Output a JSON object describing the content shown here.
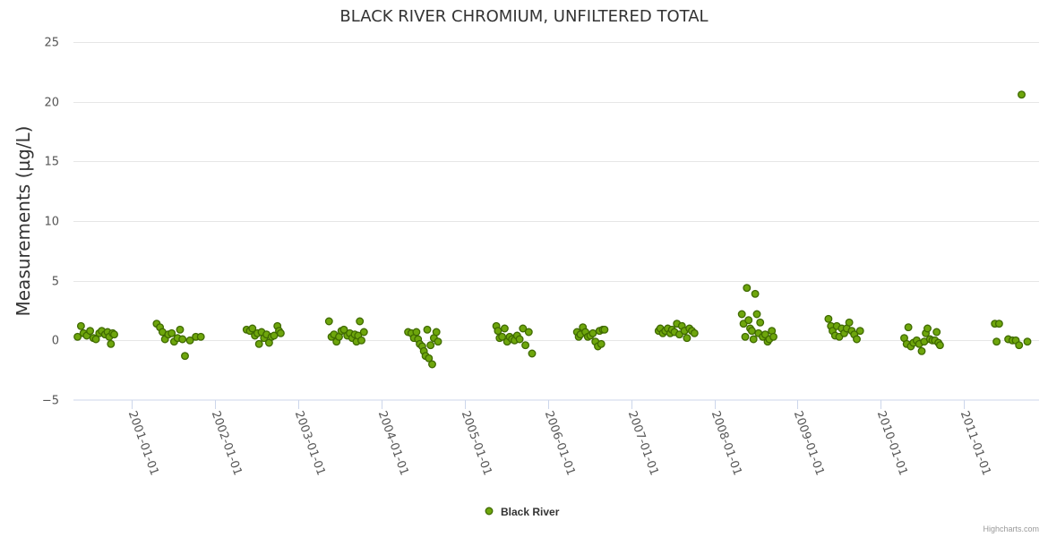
{
  "chart_data": {
    "type": "scatter",
    "title": "BLACK RIVER CHROMIUM, UNFILTERED TOTAL",
    "ylabel": "Measurements (µg/L)",
    "xlabel": "",
    "ylim": [
      -5,
      25
    ],
    "yticks": [
      "25",
      "20",
      "15",
      "10",
      "5",
      "0",
      "−5"
    ],
    "ytick_values": [
      25,
      20,
      15,
      10,
      5,
      0,
      -5
    ],
    "xlim": [
      2000.3,
      2011.9
    ],
    "xticks": [
      "2001-01-01",
      "2002-01-01",
      "2003-01-01",
      "2004-01-01",
      "2005-01-01",
      "2006-01-01",
      "2007-01-01",
      "2008-01-01",
      "2009-01-01",
      "2010-01-01",
      "2011-01-01"
    ],
    "xtick_values": [
      2001,
      2002,
      2003,
      2004,
      2005,
      2006,
      2007,
      2008,
      2009,
      2010,
      2011
    ],
    "color": "#6ea60c",
    "series": [
      {
        "name": "Black River",
        "points": [
          [
            2000.35,
            0.3
          ],
          [
            2000.39,
            1.2
          ],
          [
            2000.42,
            0.6
          ],
          [
            2000.46,
            0.4
          ],
          [
            2000.5,
            0.8
          ],
          [
            2000.54,
            0.2
          ],
          [
            2000.57,
            0.1
          ],
          [
            2000.61,
            0.6
          ],
          [
            2000.64,
            0.8
          ],
          [
            2000.68,
            0.5
          ],
          [
            2000.71,
            0.7
          ],
          [
            2000.73,
            0.3
          ],
          [
            2000.75,
            -0.3
          ],
          [
            2000.77,
            0.6
          ],
          [
            2000.79,
            0.5
          ],
          [
            2001.3,
            1.4
          ],
          [
            2001.34,
            1.1
          ],
          [
            2001.37,
            0.7
          ],
          [
            2001.4,
            0.1
          ],
          [
            2001.44,
            0.5
          ],
          [
            2001.48,
            0.6
          ],
          [
            2001.51,
            -0.1
          ],
          [
            2001.55,
            0.2
          ],
          [
            2001.58,
            0.9
          ],
          [
            2001.61,
            0.1
          ],
          [
            2001.64,
            -1.3
          ],
          [
            2001.7,
            0.0
          ],
          [
            2001.77,
            0.3
          ],
          [
            2001.83,
            0.3
          ],
          [
            2002.38,
            0.9
          ],
          [
            2002.42,
            0.8
          ],
          [
            2002.45,
            1.0
          ],
          [
            2002.48,
            0.4
          ],
          [
            2002.51,
            0.6
          ],
          [
            2002.53,
            -0.3
          ],
          [
            2002.56,
            0.7
          ],
          [
            2002.59,
            0.2
          ],
          [
            2002.62,
            0.5
          ],
          [
            2002.65,
            -0.2
          ],
          [
            2002.68,
            0.3
          ],
          [
            2002.71,
            0.4
          ],
          [
            2002.75,
            1.2
          ],
          [
            2002.77,
            0.8
          ],
          [
            2002.79,
            0.6
          ],
          [
            2003.37,
            1.6
          ],
          [
            2003.4,
            0.3
          ],
          [
            2003.43,
            0.5
          ],
          [
            2003.46,
            -0.1
          ],
          [
            2003.49,
            0.3
          ],
          [
            2003.52,
            0.8
          ],
          [
            2003.55,
            0.9
          ],
          [
            2003.59,
            0.4
          ],
          [
            2003.62,
            0.6
          ],
          [
            2003.65,
            0.2
          ],
          [
            2003.68,
            0.5
          ],
          [
            2003.7,
            -0.1
          ],
          [
            2003.72,
            0.4
          ],
          [
            2003.74,
            1.6
          ],
          [
            2003.76,
            0.0
          ],
          [
            2003.79,
            0.7
          ],
          [
            2004.32,
            0.7
          ],
          [
            2004.36,
            0.6
          ],
          [
            2004.39,
            0.2
          ],
          [
            2004.42,
            0.7
          ],
          [
            2004.44,
            0.1
          ],
          [
            2004.46,
            -0.3
          ],
          [
            2004.49,
            -0.5
          ],
          [
            2004.51,
            -0.9
          ],
          [
            2004.53,
            -1.3
          ],
          [
            2004.55,
            0.9
          ],
          [
            2004.57,
            -1.5
          ],
          [
            2004.59,
            -0.4
          ],
          [
            2004.61,
            -2.0
          ],
          [
            2004.63,
            0.2
          ],
          [
            2004.66,
            0.7
          ],
          [
            2004.68,
            -0.1
          ],
          [
            2005.38,
            1.2
          ],
          [
            2005.4,
            0.8
          ],
          [
            2005.42,
            0.2
          ],
          [
            2005.45,
            0.3
          ],
          [
            2005.48,
            1.0
          ],
          [
            2005.51,
            -0.1
          ],
          [
            2005.54,
            0.3
          ],
          [
            2005.57,
            0.1
          ],
          [
            2005.6,
            0.0
          ],
          [
            2005.63,
            0.4
          ],
          [
            2005.66,
            0.1
          ],
          [
            2005.7,
            1.0
          ],
          [
            2005.73,
            -0.4
          ],
          [
            2005.77,
            0.7
          ],
          [
            2005.81,
            -1.1
          ],
          [
            2006.35,
            0.7
          ],
          [
            2006.37,
            0.3
          ],
          [
            2006.39,
            0.5
          ],
          [
            2006.42,
            1.1
          ],
          [
            2006.45,
            0.7
          ],
          [
            2006.48,
            0.3
          ],
          [
            2006.51,
            0.4
          ],
          [
            2006.54,
            0.6
          ],
          [
            2006.57,
            -0.1
          ],
          [
            2006.6,
            -0.5
          ],
          [
            2006.62,
            0.8
          ],
          [
            2006.64,
            -0.3
          ],
          [
            2006.66,
            0.9
          ],
          [
            2006.68,
            0.9
          ],
          [
            2007.33,
            0.8
          ],
          [
            2007.35,
            1.0
          ],
          [
            2007.38,
            0.6
          ],
          [
            2007.41,
            0.8
          ],
          [
            2007.44,
            1.0
          ],
          [
            2007.47,
            0.6
          ],
          [
            2007.49,
            0.9
          ],
          [
            2007.52,
            0.7
          ],
          [
            2007.55,
            1.4
          ],
          [
            2007.58,
            0.5
          ],
          [
            2007.61,
            1.2
          ],
          [
            2007.64,
            0.8
          ],
          [
            2007.67,
            0.2
          ],
          [
            2007.7,
            1.0
          ],
          [
            2007.73,
            0.8
          ],
          [
            2007.76,
            0.6
          ],
          [
            2008.33,
            2.2
          ],
          [
            2008.35,
            1.4
          ],
          [
            2008.37,
            0.3
          ],
          [
            2008.39,
            4.4
          ],
          [
            2008.41,
            1.7
          ],
          [
            2008.43,
            1.0
          ],
          [
            2008.45,
            0.8
          ],
          [
            2008.47,
            0.1
          ],
          [
            2008.49,
            3.9
          ],
          [
            2008.51,
            2.2
          ],
          [
            2008.53,
            0.6
          ],
          [
            2008.55,
            1.5
          ],
          [
            2008.58,
            0.3
          ],
          [
            2008.61,
            0.5
          ],
          [
            2008.64,
            -0.1
          ],
          [
            2008.66,
            0.1
          ],
          [
            2008.69,
            0.8
          ],
          [
            2008.71,
            0.3
          ],
          [
            2009.37,
            1.8
          ],
          [
            2009.4,
            1.2
          ],
          [
            2009.42,
            0.8
          ],
          [
            2009.45,
            0.4
          ],
          [
            2009.47,
            1.2
          ],
          [
            2009.5,
            0.3
          ],
          [
            2009.53,
            1.0
          ],
          [
            2009.56,
            0.6
          ],
          [
            2009.59,
            1.0
          ],
          [
            2009.62,
            1.5
          ],
          [
            2009.65,
            0.8
          ],
          [
            2009.68,
            0.5
          ],
          [
            2009.71,
            0.1
          ],
          [
            2009.75,
            0.8
          ],
          [
            2010.28,
            0.2
          ],
          [
            2010.31,
            -0.3
          ],
          [
            2010.33,
            1.1
          ],
          [
            2010.36,
            -0.5
          ],
          [
            2010.39,
            -0.2
          ],
          [
            2010.43,
            0.0
          ],
          [
            2010.46,
            -0.3
          ],
          [
            2010.49,
            -0.9
          ],
          [
            2010.52,
            -0.1
          ],
          [
            2010.54,
            0.6
          ],
          [
            2010.56,
            1.0
          ],
          [
            2010.59,
            0.1
          ],
          [
            2010.62,
            0.0
          ],
          [
            2010.65,
            0.0
          ],
          [
            2010.67,
            0.7
          ],
          [
            2010.69,
            -0.2
          ],
          [
            2010.71,
            -0.4
          ],
          [
            2011.37,
            1.4
          ],
          [
            2011.39,
            -0.1
          ],
          [
            2011.42,
            1.4
          ],
          [
            2011.53,
            0.1
          ],
          [
            2011.58,
            0.0
          ],
          [
            2011.62,
            0.0
          ],
          [
            2011.66,
            -0.4
          ],
          [
            2011.69,
            20.6
          ],
          [
            2011.76,
            -0.1
          ]
        ]
      }
    ],
    "legend": {
      "position": "bottom-center",
      "label": "Black River"
    },
    "credits": "Highcharts.com"
  }
}
